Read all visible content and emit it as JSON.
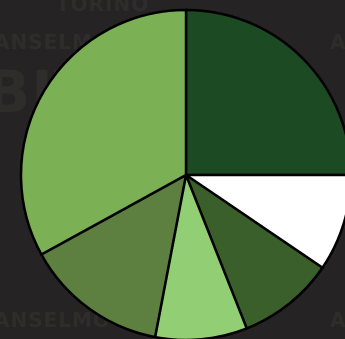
{
  "background": {
    "color": "#252323",
    "watermark_words": [
      "TORINO",
      "ANSELMO",
      "A",
      "BITI",
      "ANSELMO",
      "A"
    ]
  },
  "chart_data": {
    "type": "pie",
    "title": "",
    "legend": "none",
    "start_angle_deg": 0,
    "direction": "clockwise",
    "slices": [
      {
        "value": 25.0,
        "color": "#1c4a22"
      },
      {
        "value": 9.5,
        "color": "#ffffff"
      },
      {
        "value": 9.5,
        "color": "#3b5f2a"
      },
      {
        "value": 9.0,
        "color": "#92cf74"
      },
      {
        "value": 14.0,
        "color": "#5d7f3f"
      },
      {
        "value": 33.0,
        "color": "#7cb055"
      }
    ],
    "stroke": "#000000"
  }
}
